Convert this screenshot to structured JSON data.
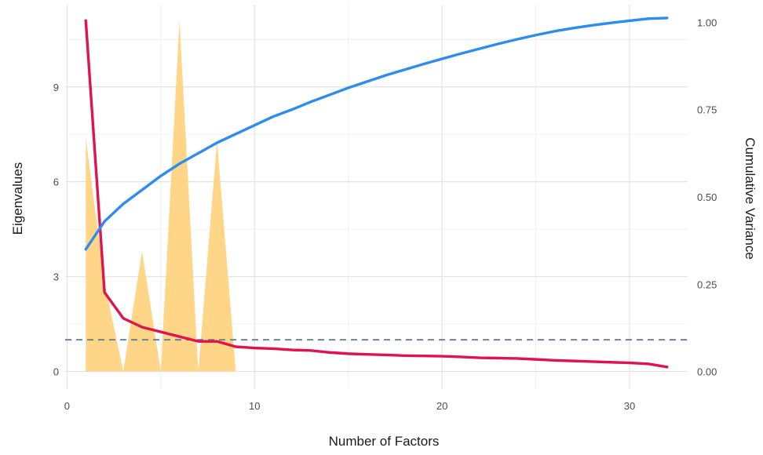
{
  "chart_data": {
    "type": "line",
    "title": "",
    "xlabel": "Number of Factors",
    "ylabel": "Eigenvalues",
    "y2label": "Cumulative Variance",
    "xlim": [
      -0.1,
      33.1
    ],
    "ylim": [
      -0.56,
      11.6
    ],
    "y2lim": [
      -0.05,
      1.05
    ],
    "x_ticks": [
      0,
      10,
      20,
      30
    ],
    "x_minor_ticks": [
      5,
      15,
      25
    ],
    "y_ticks": [
      0,
      3,
      6,
      9
    ],
    "y_minor_ticks": [
      1.5,
      4.5,
      7.5,
      10.5
    ],
    "y2_ticks": [
      "0.00",
      "0.25",
      "0.50",
      "0.75",
      "1.00"
    ],
    "grid": true,
    "legend": "none",
    "reference_line": {
      "y": 1,
      "style": "dashed"
    },
    "series": [
      {
        "kind": "area",
        "axis": "left",
        "color": "#FFD27A",
        "x": [
          1,
          2,
          3,
          4,
          5,
          6,
          7,
          8,
          9
        ],
        "values": [
          7.4,
          2.8,
          0.0,
          3.8,
          0.0,
          11.1,
          0.0,
          7.3,
          0.0
        ]
      },
      {
        "kind": "line",
        "axis": "left",
        "color": "#E0134F",
        "x": [
          1,
          2,
          3,
          4,
          5,
          6,
          7,
          8,
          9,
          10,
          11,
          12,
          13,
          14,
          15,
          16,
          17,
          18,
          19,
          20,
          21,
          22,
          23,
          24,
          25,
          26,
          27,
          28,
          29,
          30,
          31,
          32
        ],
        "values": [
          11.1,
          2.5,
          1.68,
          1.4,
          1.25,
          1.1,
          0.95,
          0.95,
          0.78,
          0.74,
          0.72,
          0.68,
          0.66,
          0.6,
          0.56,
          0.54,
          0.52,
          0.5,
          0.49,
          0.48,
          0.46,
          0.43,
          0.42,
          0.41,
          0.38,
          0.35,
          0.33,
          0.31,
          0.29,
          0.27,
          0.24,
          0.14
        ]
      },
      {
        "kind": "line",
        "axis": "right",
        "color": "#2D8CF0",
        "x": [
          1,
          2,
          3,
          4,
          5,
          6,
          7,
          8,
          9,
          10,
          11,
          12,
          13,
          14,
          15,
          16,
          17,
          18,
          19,
          20,
          21,
          22,
          23,
          24,
          25,
          26,
          27,
          28,
          29,
          30,
          31,
          32
        ],
        "values": [
          0.35,
          0.43,
          0.48,
          0.52,
          0.56,
          0.595,
          0.625,
          0.655,
          0.68,
          0.705,
          0.73,
          0.75,
          0.772,
          0.792,
          0.812,
          0.83,
          0.848,
          0.864,
          0.88,
          0.895,
          0.91,
          0.924,
          0.938,
          0.951,
          0.963,
          0.974,
          0.983,
          0.991,
          0.998,
          1.004,
          1.01,
          1.012
        ]
      }
    ]
  }
}
